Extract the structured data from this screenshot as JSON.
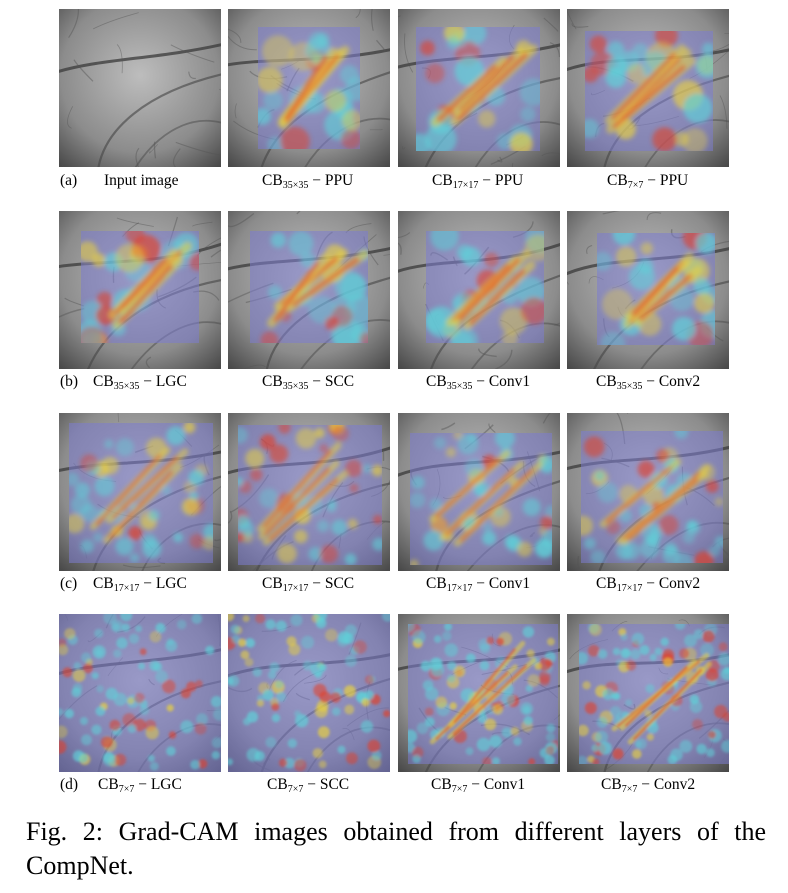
{
  "figure": {
    "rows": [
      {
        "tag": "(a)",
        "panels": [
          {
            "text": "Input image",
            "sub": "",
            "suffix": ""
          },
          {
            "text": "CB",
            "sub": "35×35",
            "suffix": " − PPU"
          },
          {
            "text": "CB",
            "sub": "17×17",
            "suffix": " − PPU"
          },
          {
            "text": "CB",
            "sub": "7×7",
            "suffix": " − PPU"
          }
        ]
      },
      {
        "tag": "(b)",
        "panels": [
          {
            "text": "CB",
            "sub": "35×35",
            "suffix": " − LGC"
          },
          {
            "text": "CB",
            "sub": "35×35",
            "suffix": " − SCC"
          },
          {
            "text": "CB",
            "sub": "35×35",
            "suffix": " − Conv1"
          },
          {
            "text": "CB",
            "sub": "35×35",
            "suffix": " − Conv2"
          }
        ]
      },
      {
        "tag": "(c)",
        "panels": [
          {
            "text": "CB",
            "sub": "17×17",
            "suffix": " − LGC"
          },
          {
            "text": "CB",
            "sub": "17×17",
            "suffix": " − SCC"
          },
          {
            "text": "CB",
            "sub": "17×17",
            "suffix": " − Conv1"
          },
          {
            "text": "CB",
            "sub": "17×17",
            "suffix": " − Conv2"
          }
        ]
      },
      {
        "tag": "(d)",
        "panels": [
          {
            "text": "CB",
            "sub": "7×7",
            "suffix": " − LGC"
          },
          {
            "text": "CB",
            "sub": "7×7",
            "suffix": " − SCC"
          },
          {
            "text": "CB",
            "sub": "7×7",
            "suffix": " − Conv1"
          },
          {
            "text": "CB",
            "sub": "7×7",
            "suffix": " − Conv2"
          }
        ]
      }
    ],
    "caption": "Fig. 2: Grad-CAM images obtained from different layers of the CompNet."
  },
  "colors": {
    "palm_base": "#8c8c8c",
    "overlay_blue": "#7c7ccf",
    "heat_red": "#e0402a",
    "heat_yellow": "#e8d040",
    "heat_cyan": "#5fd0d8"
  }
}
